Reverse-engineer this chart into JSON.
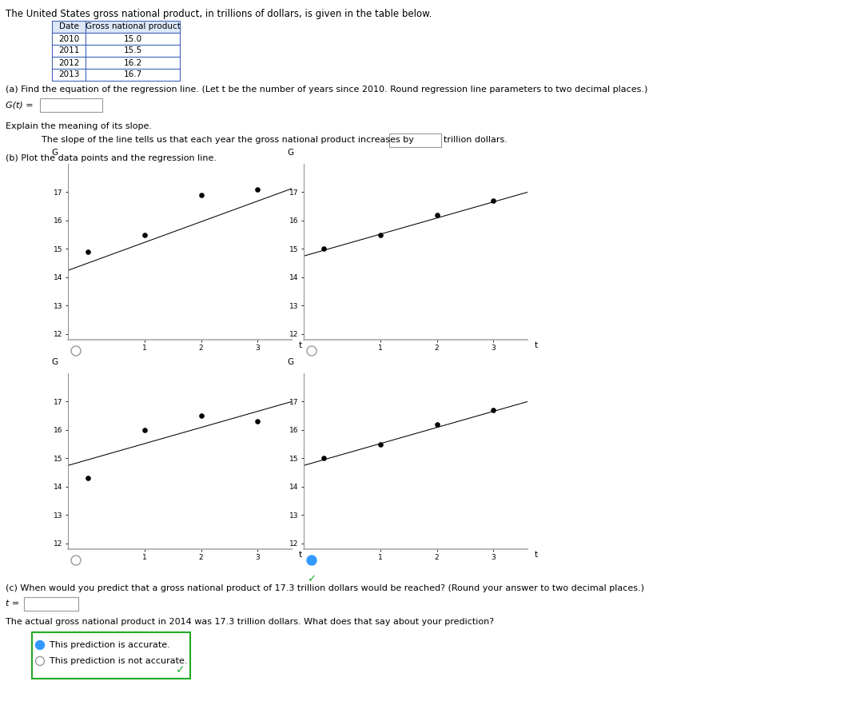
{
  "title_text": "The United States gross national product, in trillions of dollars, is given in the table below.",
  "table_dates": [
    "Date",
    "2010",
    "2011",
    "2012",
    "2013"
  ],
  "table_gnp": [
    "Gross national product",
    "15.0",
    "15.5",
    "16.2",
    "16.7"
  ],
  "part_a_text": "(a) Find the equation of the regression line. (Let t be the number of years since 2010. Round regression line parameters to two decimal places.)",
  "g_eq_label": "G(t) =",
  "explain_slope_text": "Explain the meaning of its slope.",
  "slope_text": "The slope of the line tells us that each year the gross national product increases by",
  "slope_suffix": "trillion dollars.",
  "part_b_text": "(b) Plot the data points and the regression line.",
  "part_c_text": "(c) When would you predict that a gross national product of 17.3 trillion dollars would be reached? (Round your answer to two decimal places.)",
  "t_eq_label": "t =",
  "actual_gnp_text": "The actual gross national product in 2014 was 17.3 trillion dollars. What does that say about your prediction?",
  "choice1": "This prediction is accurate.",
  "choice2": "This prediction is not accurate.",
  "plot1_t_pts": [
    0,
    1,
    2,
    3
  ],
  "plot1_g_pts": [
    14.9,
    15.5,
    16.9,
    17.1
  ],
  "plot1_slope": 0.73,
  "plot1_intercept": 14.5,
  "plot2_t_pts": [
    0,
    1,
    2,
    3
  ],
  "plot2_g_pts": [
    15.0,
    15.5,
    16.2,
    16.7
  ],
  "plot2_slope": 0.57,
  "plot2_intercept": 14.95,
  "plot3_t_pts": [
    0,
    1,
    2,
    3
  ],
  "plot3_g_pts": [
    14.3,
    16.0,
    16.5,
    16.3
  ],
  "plot3_slope": 0.57,
  "plot3_intercept": 14.95,
  "plot4_t_pts": [
    0,
    1,
    2,
    3
  ],
  "plot4_g_pts": [
    15.0,
    15.5,
    16.2,
    16.7
  ],
  "plot4_slope": 0.57,
  "plot4_intercept": 14.95,
  "ylim_data": [
    11.8,
    18.0
  ],
  "yticks": [
    12,
    13,
    14,
    15,
    16,
    17
  ],
  "xticks": [
    1,
    2,
    3
  ],
  "bg_color": "#ffffff",
  "table_header_color": "#dde8f8",
  "table_border_color": "#4466bb",
  "correct_answer_border": "#22aa22",
  "radio_fill_color": "#3399ff",
  "check_color": "#22aa22",
  "axis_color": "#aaaaaa",
  "text_color": "#000000"
}
